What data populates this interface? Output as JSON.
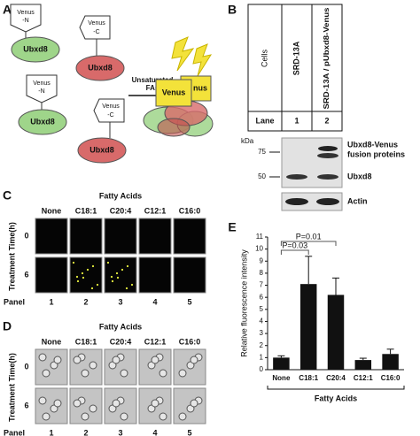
{
  "panel_a": {
    "label": "A",
    "venus_n": [
      "Venus",
      "-N"
    ],
    "venus_c": [
      "Venus",
      "-C"
    ],
    "ubxd8": "Ubxd8",
    "arrow_text": [
      "Unsaturated",
      "FAs"
    ],
    "venus": "Venus",
    "venus_behind": "nus"
  },
  "panel_b": {
    "label": "B",
    "cells": "Cells",
    "samples": [
      "SRD-13A",
      "SRD-13A / pUbxd8-Venus"
    ],
    "lane": "Lane",
    "lanes": [
      "1",
      "2"
    ],
    "kda": "kDa",
    "markers": [
      "75",
      "50"
    ],
    "fusion": [
      "Ubxd8-Venus",
      "fusion proteins"
    ],
    "ubxd8": "Ubxd8",
    "actin": "Actin"
  },
  "panel_c": {
    "label": "C",
    "header": "Fatty Acids",
    "conditions": [
      "None",
      "C18:1",
      "C20:4",
      "C12:1",
      "C16:0"
    ],
    "row_title": "Treatment Time(h)",
    "times": [
      "0",
      "6"
    ],
    "panel_title": "Panel",
    "panels": [
      "1",
      "2",
      "3",
      "4",
      "5"
    ]
  },
  "panel_d": {
    "label": "D",
    "header": "Fatty Acids",
    "conditions": [
      "None",
      "C18:1",
      "C20:4",
      "C12:1",
      "C16:0"
    ],
    "row_title": "Treatment Time(h)",
    "times": [
      "0",
      "6"
    ],
    "panel_title": "Panel",
    "panels": [
      "1",
      "2",
      "3",
      "4",
      "5"
    ]
  },
  "panel_e": {
    "label": "E"
  },
  "chart_data": {
    "type": "bar",
    "y_label": "Relative fluorescence intensity",
    "x_label": "Fatty Acids",
    "categories": [
      "None",
      "C18:1",
      "C20:4",
      "C12:1",
      "C16:0"
    ],
    "values": [
      1.0,
      7.1,
      6.2,
      0.8,
      1.3
    ],
    "errors": [
      0.15,
      2.3,
      1.4,
      0.15,
      0.4
    ],
    "color": "#111111",
    "ylim": [
      0,
      11
    ],
    "yticks": [
      0,
      1,
      2,
      3,
      4,
      5,
      6,
      7,
      8,
      9,
      10,
      11
    ],
    "annotations": [
      "P=0.03",
      "P=0.01"
    ]
  }
}
